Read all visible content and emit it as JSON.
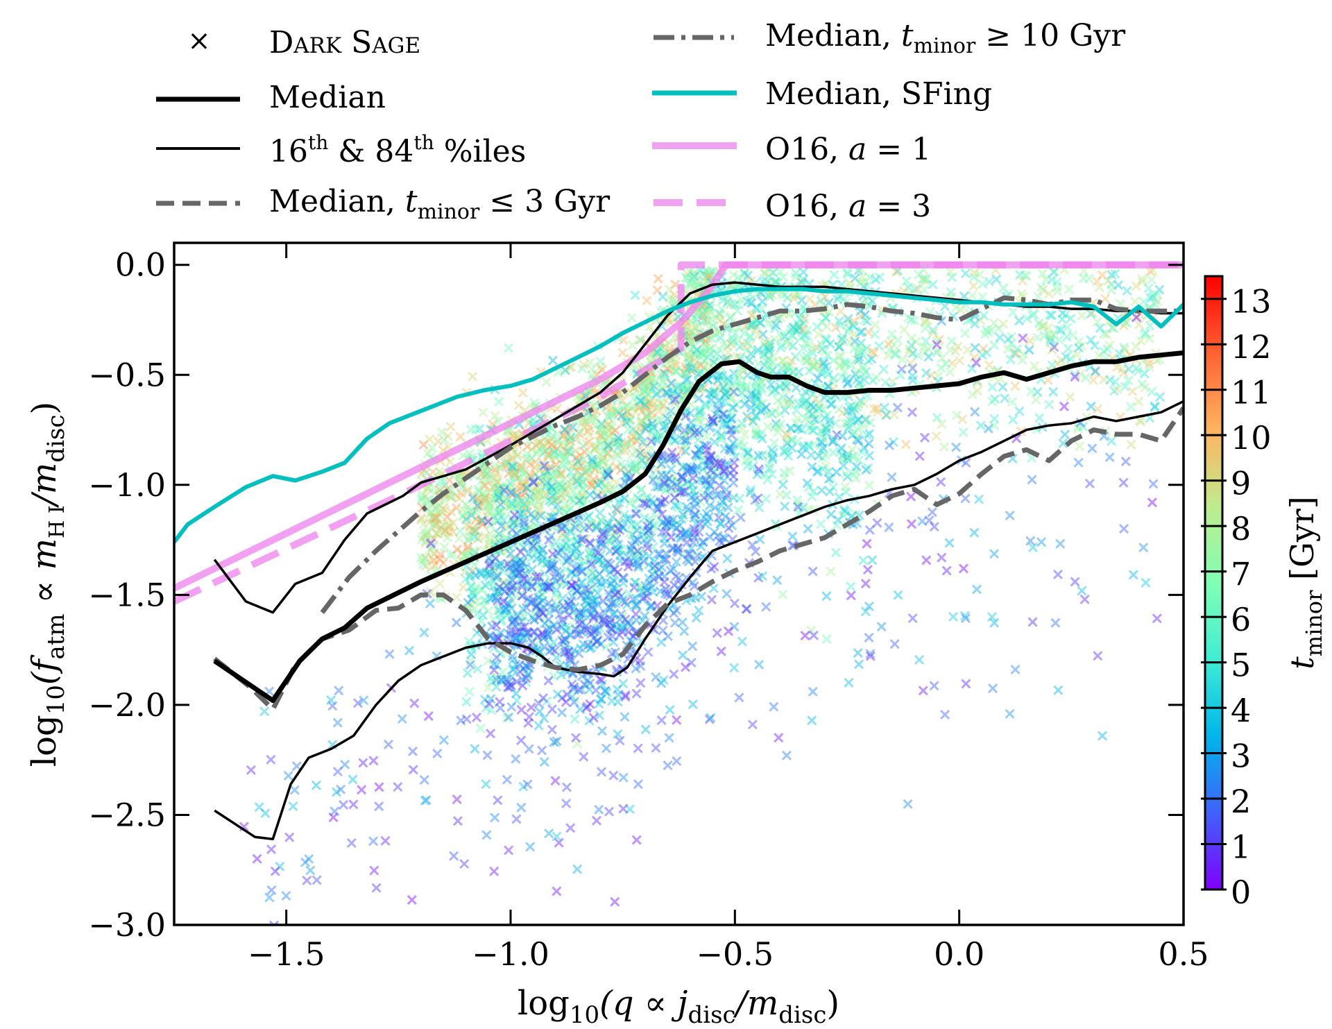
{
  "chart_data": {
    "type": "scatter",
    "title": "",
    "xlabel": "log10(q ∝ j_disc/m_disc)",
    "ylabel": "log10(f_atm ∝ m_HI/m_disc)",
    "xlabel_parts": {
      "pre": "log",
      "sub1": "10",
      "mid": "(q ∝ j",
      "sub2": "disc",
      "mid2": "/m",
      "sub3": "disc",
      "post": ")"
    },
    "ylabel_parts": {
      "pre": "log",
      "sub1": "10",
      "mid": "(f",
      "sub2": "atm",
      "mid2": " ∝ m",
      "sub3": "H I",
      "mid3": "/m",
      "sub4": "disc",
      "post": ")"
    },
    "xlim": [
      -1.75,
      0.5
    ],
    "ylim": [
      -3.0,
      0.1
    ],
    "xticks": [
      -1.5,
      -1.0,
      -0.5,
      0.0,
      0.5
    ],
    "xtick_labels": [
      "−1.5",
      "−1.0",
      "−0.5",
      "0.0",
      "0.5"
    ],
    "yticks": [
      0.0,
      -0.5,
      -1.0,
      -1.5,
      -2.0,
      -2.5,
      -3.0
    ],
    "ytick_labels": [
      "0.0",
      "−0.5",
      "−1.0",
      "−1.5",
      "−2.0",
      "−2.5",
      "−3.0"
    ],
    "grid": false,
    "legend_position": "top (above axes, two columns)",
    "legend": [
      {
        "label": "DARK SAGE",
        "style": "marker-x",
        "color": "#000000"
      },
      {
        "label": "Median",
        "style": "thick-solid",
        "color": "#000000"
      },
      {
        "label": "16th & 84th %iles",
        "style": "thin-solid",
        "color": "#000000"
      },
      {
        "label": "Median, t_minor ≤ 3 Gyr",
        "style": "dashed",
        "color": "#666666"
      },
      {
        "label": "Median, t_minor ≥ 10 Gyr",
        "style": "dash-dot",
        "color": "#666666"
      },
      {
        "label": "Median, SFing",
        "style": "solid",
        "color": "#00BFBF"
      },
      {
        "label": "O16, a=1",
        "style": "solid",
        "color": "#EE82EE"
      },
      {
        "label": "O16, a=3",
        "style": "dashed",
        "color": "#EE82EE"
      }
    ],
    "legend_text": {
      "dark_sage": "Dark Sage",
      "median": "Median",
      "pct_16": "16",
      "pct_th": "th",
      "pct_amp": " & 84",
      "pct_th2": "th",
      "pct_tail": " %iles",
      "med_lt_pre": "Median, ",
      "t": "t",
      "minor": "minor",
      "le_tail": " ≤ 3 Gyr",
      "ge_tail": " ≥ 10 Gyr",
      "sfing": "Median, SFing",
      "o16_pre": "O16, ",
      "a": "a",
      "a1_tail": " = 1",
      "a3_tail": " = 3"
    },
    "colorbar": {
      "label": "t_minor [Gyr]",
      "label_t": "t",
      "label_sub": "minor",
      "label_unit": " [Gyr]",
      "range": [
        0,
        13.5
      ],
      "ticks": [
        0,
        1,
        2,
        3,
        4,
        5,
        6,
        7,
        8,
        9,
        10,
        11,
        12,
        13
      ],
      "tick_labels": [
        "0",
        "1",
        "2",
        "3",
        "4",
        "5",
        "6",
        "7",
        "8",
        "9",
        "10",
        "11",
        "12",
        "13"
      ],
      "colormap": "rainbow",
      "colormap_stops": [
        "#8000ff",
        "#4062fa",
        "#00b5eb",
        "#40ecd4",
        "#80ffb4",
        "#c0eb8d",
        "#ffb360",
        "#ff6232",
        "#ff0000"
      ]
    },
    "series": [
      {
        "name": "Median",
        "color": "#000000",
        "x": [
          -1.66,
          -1.53,
          -1.47,
          -1.42,
          -1.37,
          -1.32,
          -1.25,
          -1.2,
          -1.1,
          -1.0,
          -0.9,
          -0.8,
          -0.75,
          -0.7,
          -0.66,
          -0.62,
          -0.58,
          -0.53,
          -0.49,
          -0.45,
          -0.42,
          -0.38,
          -0.34,
          -0.3,
          -0.25,
          -0.2,
          -0.15,
          -0.1,
          -0.05,
          0.0,
          0.05,
          0.1,
          0.15,
          0.2,
          0.25,
          0.3,
          0.35,
          0.4,
          0.45,
          0.5
        ],
        "y": [
          -1.8,
          -1.98,
          -1.8,
          -1.7,
          -1.65,
          -1.56,
          -1.49,
          -1.44,
          -1.35,
          -1.26,
          -1.17,
          -1.08,
          -1.03,
          -0.95,
          -0.82,
          -0.66,
          -0.53,
          -0.45,
          -0.44,
          -0.49,
          -0.51,
          -0.51,
          -0.55,
          -0.58,
          -0.58,
          -0.57,
          -0.57,
          -0.56,
          -0.55,
          -0.54,
          -0.51,
          -0.49,
          -0.52,
          -0.49,
          -0.46,
          -0.44,
          -0.44,
          -0.42,
          -0.41,
          -0.4
        ]
      },
      {
        "name": "84th percentile",
        "color": "#000000",
        "x": [
          -1.66,
          -1.59,
          -1.53,
          -1.48,
          -1.42,
          -1.37,
          -1.32,
          -1.24,
          -1.2,
          -1.1,
          -1.0,
          -0.9,
          -0.8,
          -0.75,
          -0.7,
          -0.65,
          -0.6,
          -0.55,
          -0.5,
          -0.45,
          -0.4,
          -0.35,
          -0.3,
          -0.25,
          -0.2,
          -0.15,
          -0.1,
          -0.05,
          0.0,
          0.05,
          0.1,
          0.15,
          0.2,
          0.25,
          0.3,
          0.35,
          0.4,
          0.45,
          0.5
        ],
        "y": [
          -1.34,
          -1.53,
          -1.58,
          -1.45,
          -1.4,
          -1.25,
          -1.13,
          -1.05,
          -0.99,
          -0.93,
          -0.82,
          -0.7,
          -0.58,
          -0.49,
          -0.36,
          -0.23,
          -0.13,
          -0.09,
          -0.08,
          -0.09,
          -0.1,
          -0.1,
          -0.1,
          -0.11,
          -0.12,
          -0.13,
          -0.14,
          -0.15,
          -0.16,
          -0.17,
          -0.18,
          -0.19,
          -0.19,
          -0.2,
          -0.2,
          -0.21,
          -0.21,
          -0.22,
          -0.22
        ]
      },
      {
        "name": "16th percentile",
        "color": "#000000",
        "x": [
          -1.66,
          -1.57,
          -1.53,
          -1.49,
          -1.45,
          -1.4,
          -1.35,
          -1.3,
          -1.25,
          -1.2,
          -1.15,
          -1.1,
          -1.05,
          -1.0,
          -0.96,
          -0.93,
          -0.9,
          -0.85,
          -0.8,
          -0.77,
          -0.74,
          -0.7,
          -0.65,
          -0.6,
          -0.55,
          -0.5,
          -0.45,
          -0.4,
          -0.35,
          -0.3,
          -0.25,
          -0.2,
          -0.15,
          -0.1,
          -0.05,
          0.0,
          0.05,
          0.1,
          0.15,
          0.2,
          0.25,
          0.3,
          0.35,
          0.4,
          0.45,
          0.5
        ],
        "y": [
          -2.48,
          -2.6,
          -2.61,
          -2.36,
          -2.24,
          -2.2,
          -2.14,
          -2.0,
          -1.89,
          -1.82,
          -1.78,
          -1.74,
          -1.72,
          -1.72,
          -1.74,
          -1.78,
          -1.83,
          -1.85,
          -1.86,
          -1.87,
          -1.83,
          -1.7,
          -1.55,
          -1.42,
          -1.3,
          -1.26,
          -1.22,
          -1.18,
          -1.14,
          -1.1,
          -1.07,
          -1.05,
          -1.02,
          -1.0,
          -0.95,
          -0.89,
          -0.85,
          -0.8,
          -0.75,
          -0.73,
          -0.72,
          -0.69,
          -0.71,
          -0.69,
          -0.67,
          -0.62
        ]
      },
      {
        "name": "Median, t_minor <= 3 Gyr",
        "color": "#666666",
        "x": [
          -1.66,
          -1.58,
          -1.53,
          -1.48,
          -1.42,
          -1.36,
          -1.3,
          -1.25,
          -1.2,
          -1.15,
          -1.1,
          -1.05,
          -1.0,
          -0.95,
          -0.9,
          -0.85,
          -0.8,
          -0.75,
          -0.7,
          -0.65,
          -0.6,
          -0.55,
          -0.5,
          -0.45,
          -0.4,
          -0.35,
          -0.3,
          -0.25,
          -0.2,
          -0.15,
          -0.1,
          -0.05,
          0.0,
          0.05,
          0.1,
          0.15,
          0.2,
          0.25,
          0.3,
          0.35,
          0.4,
          0.45,
          0.5
        ],
        "y": [
          -1.79,
          -1.92,
          -2.02,
          -1.82,
          -1.7,
          -1.66,
          -1.57,
          -1.56,
          -1.5,
          -1.5,
          -1.57,
          -1.7,
          -1.76,
          -1.8,
          -1.83,
          -1.84,
          -1.82,
          -1.77,
          -1.64,
          -1.54,
          -1.5,
          -1.44,
          -1.39,
          -1.35,
          -1.3,
          -1.27,
          -1.24,
          -1.18,
          -1.12,
          -1.05,
          -1.02,
          -1.09,
          -1.04,
          -0.95,
          -0.87,
          -0.84,
          -0.89,
          -0.8,
          -0.75,
          -0.77,
          -0.77,
          -0.8,
          -0.65
        ]
      },
      {
        "name": "Median, t_minor >= 10 Gyr",
        "color": "#666666",
        "x": [
          -1.42,
          -1.36,
          -1.3,
          -1.25,
          -1.2,
          -1.15,
          -1.1,
          -1.05,
          -1.0,
          -0.95,
          -0.9,
          -0.85,
          -0.8,
          -0.75,
          -0.7,
          -0.65,
          -0.6,
          -0.55,
          -0.5,
          -0.45,
          -0.4,
          -0.35,
          -0.3,
          -0.25,
          -0.2,
          -0.15,
          -0.1,
          -0.05,
          0.0,
          0.05,
          0.1,
          0.15,
          0.2,
          0.25,
          0.3,
          0.35,
          0.4,
          0.45,
          0.5
        ],
        "y": [
          -1.58,
          -1.42,
          -1.3,
          -1.21,
          -1.12,
          -1.04,
          -0.97,
          -0.9,
          -0.83,
          -0.78,
          -0.73,
          -0.69,
          -0.64,
          -0.58,
          -0.5,
          -0.42,
          -0.35,
          -0.3,
          -0.27,
          -0.24,
          -0.21,
          -0.21,
          -0.2,
          -0.18,
          -0.19,
          -0.21,
          -0.22,
          -0.24,
          -0.25,
          -0.2,
          -0.15,
          -0.16,
          -0.18,
          -0.16,
          -0.16,
          -0.2,
          -0.21,
          -0.21,
          -0.21
        ]
      },
      {
        "name": "Median, SFing",
        "color": "#00BFBF",
        "x": [
          -1.75,
          -1.72,
          -1.66,
          -1.59,
          -1.53,
          -1.48,
          -1.42,
          -1.37,
          -1.32,
          -1.27,
          -1.22,
          -1.17,
          -1.12,
          -1.06,
          -1.0,
          -0.95,
          -0.9,
          -0.85,
          -0.8,
          -0.75,
          -0.7,
          -0.65,
          -0.6,
          -0.55,
          -0.5,
          -0.45,
          -0.4,
          -0.35,
          -0.3,
          -0.25,
          -0.2,
          -0.15,
          -0.1,
          -0.05,
          0.0,
          0.05,
          0.1,
          0.15,
          0.2,
          0.25,
          0.3,
          0.35,
          0.4,
          0.45,
          0.5
        ],
        "y": [
          -1.26,
          -1.18,
          -1.1,
          -1.01,
          -0.96,
          -0.98,
          -0.94,
          -0.9,
          -0.79,
          -0.72,
          -0.68,
          -0.64,
          -0.6,
          -0.57,
          -0.55,
          -0.52,
          -0.47,
          -0.42,
          -0.37,
          -0.31,
          -0.26,
          -0.21,
          -0.17,
          -0.14,
          -0.12,
          -0.11,
          -0.11,
          -0.11,
          -0.12,
          -0.12,
          -0.13,
          -0.14,
          -0.15,
          -0.16,
          -0.17,
          -0.17,
          -0.18,
          -0.18,
          -0.18,
          -0.17,
          -0.19,
          -0.27,
          -0.19,
          -0.28,
          -0.18
        ]
      },
      {
        "name": "O16, a=1",
        "color": "#EE82EE",
        "x": [
          -1.75,
          -1.5,
          -1.25,
          -1.0,
          -0.8,
          -0.7,
          -0.62,
          -0.56,
          -0.52,
          0.5
        ],
        "y": [
          -1.47,
          -1.22,
          -0.97,
          -0.72,
          -0.52,
          -0.4,
          -0.26,
          -0.12,
          0.0,
          0.0
        ]
      },
      {
        "name": "O16, a=3",
        "color": "#EE82EE",
        "x": [
          -1.75,
          -1.5,
          -1.25,
          -1.0,
          -0.8,
          -0.62,
          -0.62,
          0.5
        ],
        "y": [
          -1.53,
          -1.29,
          -1.05,
          -0.8,
          -0.6,
          -0.38,
          0.0,
          0.0
        ]
      }
    ],
    "scatter": {
      "name": "Dark Sage",
      "marker": "x",
      "alpha": 0.45,
      "seed": 20170,
      "color_by": "t_minor (Gyr)",
      "populations": [
        {
          "n": 1100,
          "x_range": [
            -1.2,
            -0.55
          ],
          "y_center_fn": "band_upper",
          "y_spread": 0.18,
          "t_range": [
            6,
            11
          ]
        },
        {
          "n": 1400,
          "x_range": [
            -1.1,
            -0.2
          ],
          "y_center_fn": "band_mid",
          "y_spread": 0.3,
          "t_range": [
            3,
            8
          ]
        },
        {
          "n": 700,
          "x_range": [
            -0.6,
            0.45
          ],
          "y_center_fn": "band_top",
          "y_spread": 0.22,
          "t_range": [
            4,
            10
          ]
        },
        {
          "n": 800,
          "x_range": [
            -1.05,
            -0.5
          ],
          "y_center_fn": "band_low",
          "y_spread": 0.25,
          "t_range": [
            0.5,
            4
          ]
        },
        {
          "n": 340,
          "x_range": [
            -1.6,
            0.45
          ],
          "y_center_fn": "sparse_low",
          "y_spread": 0.45,
          "t_range": [
            0,
            4
          ]
        }
      ]
    }
  }
}
